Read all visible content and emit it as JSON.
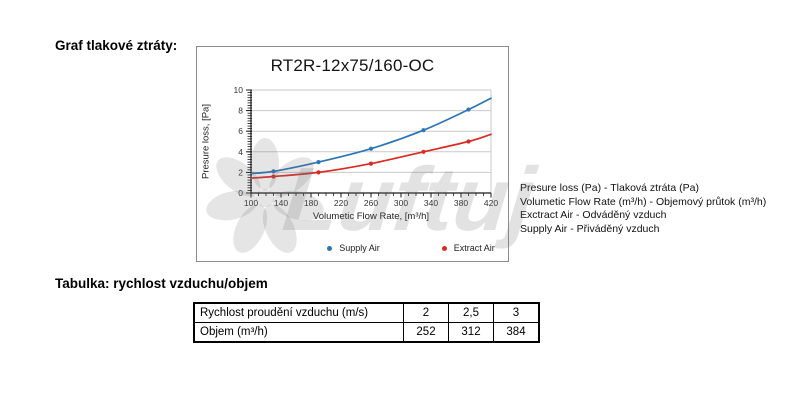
{
  "headings": {
    "chart": "Graf tlakové ztráty:",
    "table": "Tabulka: rychlost vzduchu/objem"
  },
  "chart_data": {
    "type": "line",
    "title": "RT2R-12x75/160-OC",
    "xlabel": "Volumetic Flow Rate, [m³/h]",
    "ylabel": "Presure loss, [Pa]",
    "xlim": [
      100,
      420
    ],
    "ylim": [
      0,
      10
    ],
    "x_ticks": [
      100,
      140,
      180,
      220,
      260,
      300,
      340,
      380,
      420
    ],
    "y_ticks": [
      0,
      2,
      4,
      6,
      8,
      10
    ],
    "x_minor_step": 10,
    "y_minor_step": 0.25,
    "grid": "horizontal-on",
    "legend_position": "bottom",
    "axis_color": "#1a1a1a",
    "grid_color": "#c9c9c9",
    "series": [
      {
        "name": "Supply Air",
        "color": "#2E75B6",
        "points": [
          [
            100,
            1.9
          ],
          [
            130,
            2.1
          ],
          [
            190,
            3.0
          ],
          [
            260,
            4.3
          ],
          [
            330,
            6.1
          ],
          [
            390,
            8.1
          ],
          [
            420,
            9.2
          ]
        ],
        "markers": [
          [
            130,
            2.1
          ],
          [
            190,
            3.0
          ],
          [
            260,
            4.3
          ],
          [
            330,
            6.1
          ],
          [
            390,
            8.1
          ]
        ]
      },
      {
        "name": "Extract Air",
        "color": "#D92B23",
        "points": [
          [
            100,
            1.45
          ],
          [
            130,
            1.6
          ],
          [
            190,
            2.0
          ],
          [
            260,
            2.85
          ],
          [
            330,
            4.0
          ],
          [
            390,
            5.0
          ],
          [
            420,
            5.7
          ]
        ],
        "markers": [
          [
            130,
            1.6
          ],
          [
            190,
            2.0
          ],
          [
            260,
            2.85
          ],
          [
            330,
            4.0
          ],
          [
            390,
            5.0
          ]
        ]
      }
    ]
  },
  "notes": {
    "lines": [
      "Presure loss (Pa)  - Tlaková ztráta (Pa)",
      "Volumetic Flow Rate (m³/h) - Objemový průtok (m³/h)",
      "Exctract Air  -  Odváděný vzduch",
      "Supply Air - Přiváděný vzduch"
    ]
  },
  "table": {
    "rows": [
      {
        "label": "Rychlost proudění vzduchu (m/s)",
        "values": [
          "2",
          "2,5",
          "3"
        ]
      },
      {
        "label": "Objem (m³/h)",
        "values": [
          "252",
          "312",
          "384"
        ]
      }
    ]
  },
  "watermark": {
    "text": "Luftuj",
    "color": "rgba(110,110,110,0.20)"
  }
}
